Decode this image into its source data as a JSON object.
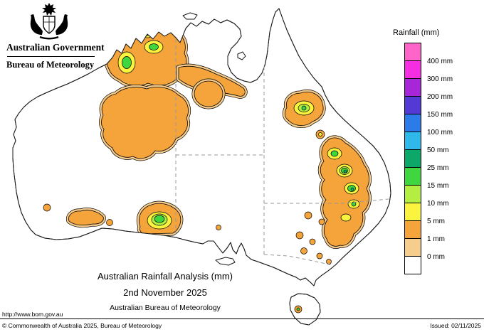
{
  "header": {
    "government": "Australian Government",
    "bureau": "Bureau of Meteorology"
  },
  "legend": {
    "title": "Rainfall (mm)",
    "entries": [
      {
        "color": "#ff64c8",
        "label": "400 mm"
      },
      {
        "color": "#f52ee1",
        "label": "300 mm"
      },
      {
        "color": "#a727d8",
        "label": "200 mm"
      },
      {
        "color": "#5439d4",
        "label": "150 mm"
      },
      {
        "color": "#2b7ce8",
        "label": "100 mm"
      },
      {
        "color": "#2fb9ea",
        "label": "50 mm"
      },
      {
        "color": "#0ca86a",
        "label": "25 mm"
      },
      {
        "color": "#3fd63f",
        "label": "15 mm"
      },
      {
        "color": "#b5ee43",
        "label": "10 mm"
      },
      {
        "color": "#fbf43e",
        "label": "5 mm"
      },
      {
        "color": "#f4a43b",
        "label": "1 mm"
      },
      {
        "color": "#f7cd8e",
        "label": "0 mm"
      },
      {
        "color": "#ffffff",
        "label": ""
      }
    ]
  },
  "map": {
    "title": "Australian Rainfall Analysis (mm)",
    "date": "2nd November 2025",
    "subtitle": "Australian Bureau of Meteorology"
  },
  "footer": {
    "url": "http://www.bom.gov.au",
    "copyright": "© Commonwealth of Australia 2025, Bureau of Meteorology",
    "issued": "Issued: 02/11/2025"
  },
  "palette": {
    "orange": "#f4a43b",
    "light_orange": "#f7cd8e",
    "yellow": "#fbf43e",
    "light_green": "#b5ee43",
    "green": "#3fd63f",
    "teal": "#0ca86a"
  }
}
